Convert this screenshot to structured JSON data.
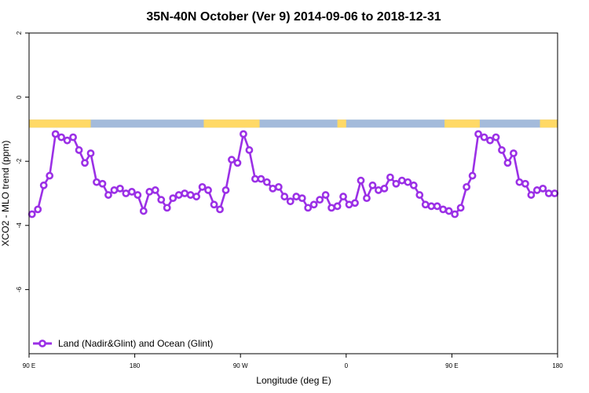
{
  "chart_data": {
    "type": "line",
    "title": "35N-40N October (Ver 9)   2014-09-06 to 2018-12-31",
    "xlabel": "Longitude (deg E)",
    "ylabel": "XCO2 - MLO trend (ppm)",
    "xlim": [
      90,
      450
    ],
    "ylim": [
      -8,
      2
    ],
    "x_ticks": [
      {
        "value": 90,
        "label": "90 E"
      },
      {
        "value": 162,
        "label": "180"
      },
      {
        "value": 234,
        "label": "90 W"
      },
      {
        "value": 306,
        "label": "0"
      },
      {
        "value": 378,
        "label": "90 E"
      },
      {
        "value": 450,
        "label": "180"
      }
    ],
    "y_ticks": [
      {
        "value": 2,
        "label": "2"
      },
      {
        "value": 0,
        "label": "0"
      },
      {
        "value": -2,
        "label": "-2"
      },
      {
        "value": -4,
        "label": "-4"
      },
      {
        "value": -6,
        "label": "-6"
      }
    ],
    "grid": false,
    "legend_position": "bottom-left",
    "colors": {
      "series": "#9b30e6",
      "land": "#ffd966",
      "ocean": "#a4bbdb"
    },
    "land_ocean_band": {
      "y_range": [
        -0.95,
        -0.7
      ],
      "land_x_ranges": [
        [
          90,
          132
        ],
        [
          209,
          247
        ],
        [
          300,
          306
        ],
        [
          373,
          397
        ],
        [
          438,
          450
        ]
      ]
    },
    "series": [
      {
        "name": "Land (Nadir&Glint) and Ocean (Glint)",
        "x": [
          92,
          96,
          100,
          104,
          108,
          112,
          116,
          120,
          124,
          128,
          132,
          136,
          140,
          144,
          148,
          152,
          156,
          160,
          164,
          168,
          172,
          176,
          180,
          184,
          188,
          192,
          196,
          200,
          204,
          208,
          212,
          216,
          220,
          224,
          228,
          232,
          236,
          240,
          244,
          248,
          252,
          256,
          260,
          264,
          268,
          272,
          276,
          280,
          284,
          288,
          292,
          296,
          300,
          304,
          308,
          312,
          316,
          320,
          324,
          328,
          332,
          336,
          340,
          344,
          348,
          352,
          356,
          360,
          364,
          368,
          372,
          376,
          380,
          384,
          388,
          392,
          396,
          400,
          404,
          408,
          412,
          416,
          420,
          424,
          428,
          432,
          436,
          440,
          444,
          448
        ],
        "values": [
          -3.65,
          -3.5,
          -2.75,
          -2.45,
          -1.15,
          -1.25,
          -1.35,
          -1.25,
          -1.65,
          -2.05,
          -1.75,
          -2.65,
          -2.7,
          -3.05,
          -2.9,
          -2.85,
          -3.0,
          -2.95,
          -3.05,
          -3.55,
          -2.95,
          -2.9,
          -3.2,
          -3.45,
          -3.15,
          -3.05,
          -3.0,
          -3.05,
          -3.1,
          -2.8,
          -2.9,
          -3.35,
          -3.5,
          -2.9,
          -1.95,
          -2.05,
          -1.15,
          -1.65,
          -2.55,
          -2.55,
          -2.65,
          -2.85,
          -2.8,
          -3.1,
          -3.25,
          -3.1,
          -3.15,
          -3.45,
          -3.35,
          -3.2,
          -3.05,
          -3.45,
          -3.4,
          -3.1,
          -3.35,
          -3.3,
          -2.6,
          -3.15,
          -2.75,
          -2.9,
          -2.85,
          -2.5,
          -2.7,
          -2.6,
          -2.65,
          -2.75,
          -3.05,
          -3.35,
          -3.4,
          -3.4,
          -3.5,
          -3.55,
          -3.65,
          -3.45,
          -2.8,
          -2.45,
          -1.15,
          -1.25,
          -1.35,
          -1.25,
          -1.65,
          -2.05,
          -1.75,
          -2.65,
          -2.7,
          -3.05,
          -2.9,
          -2.85,
          -3.0,
          -3.0
        ]
      }
    ]
  }
}
